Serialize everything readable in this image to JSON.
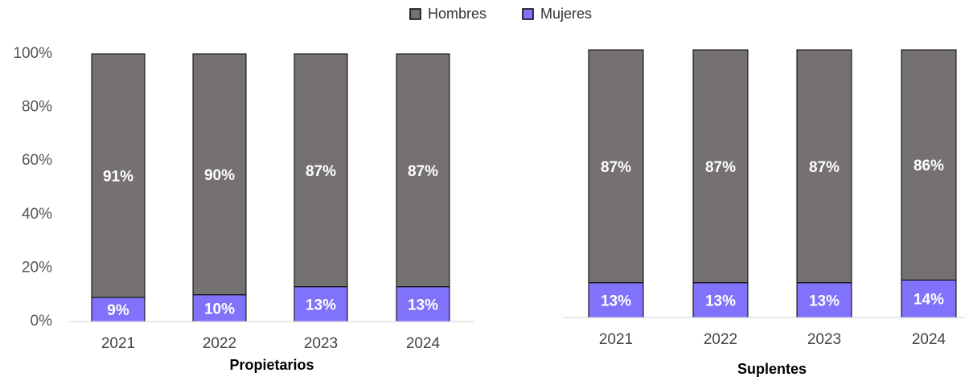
{
  "legend": [
    {
      "name": "Hombres",
      "color": "#757171"
    },
    {
      "name": "Mujeres",
      "color": "#8072fa"
    }
  ],
  "chart_data": [
    {
      "type": "stacked_bar",
      "subtitle": "Propietarios",
      "categories": [
        "2021",
        "2022",
        "2023",
        "2024"
      ],
      "series": [
        {
          "name": "Mujeres",
          "color": "#8072fa",
          "values": [
            9,
            10,
            13,
            13
          ],
          "value_labels": [
            "9%",
            "10%",
            "13%",
            "13%"
          ]
        },
        {
          "name": "Hombres",
          "color": "#757171",
          "values": [
            91,
            90,
            87,
            87
          ],
          "value_labels": [
            "91%",
            "90%",
            "87%",
            "87%"
          ]
        }
      ],
      "ylim": [
        0,
        100
      ],
      "yticks": [
        {
          "value": 0,
          "label": "0%"
        },
        {
          "value": 20,
          "label": "20%"
        },
        {
          "value": 40,
          "label": "40%"
        },
        {
          "value": 60,
          "label": "60%"
        },
        {
          "value": 80,
          "label": "80%"
        },
        {
          "value": 100,
          "label": "100%"
        }
      ]
    },
    {
      "type": "stacked_bar",
      "subtitle": "Suplentes",
      "categories": [
        "2021",
        "2022",
        "2023",
        "2024"
      ],
      "series": [
        {
          "name": "Mujeres",
          "color": "#8072fa",
          "values": [
            13,
            13,
            13,
            14
          ],
          "value_labels": [
            "13%",
            "13%",
            "13%",
            "14%"
          ]
        },
        {
          "name": "Hombres",
          "color": "#757171",
          "values": [
            87,
            87,
            87,
            86
          ],
          "value_labels": [
            "87%",
            "87%",
            "87%",
            "86%"
          ]
        }
      ],
      "ylim": [
        0,
        100
      ]
    }
  ]
}
